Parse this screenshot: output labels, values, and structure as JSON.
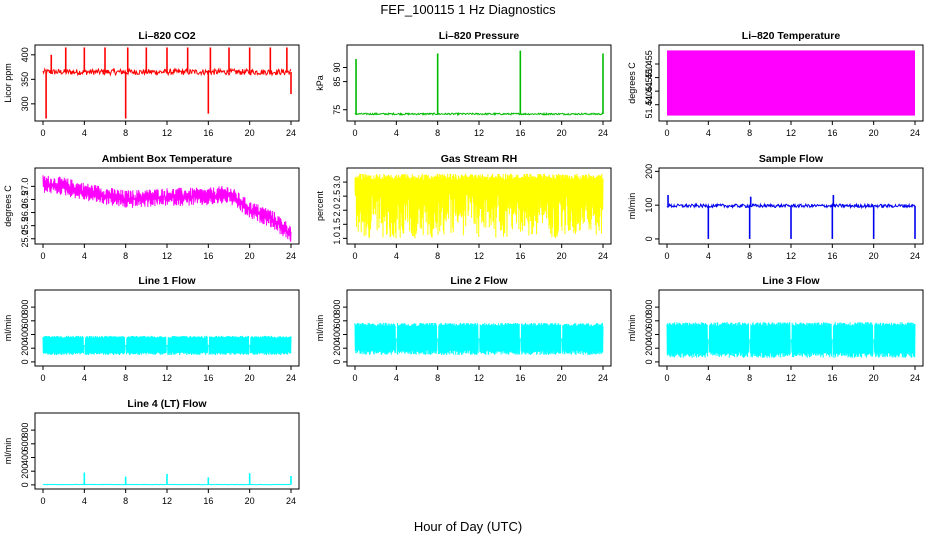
{
  "figure": {
    "title": "FEF_100115  1 Hz Diagnostics",
    "xlabel": "Hour of Day (UTC)"
  },
  "chart_data": [
    {
      "type": "line",
      "title": "Li–820 CO2",
      "ylabel": "Licor ppm",
      "color": "#ff0000",
      "xlim": [
        0,
        24
      ],
      "ylim": [
        265,
        420
      ],
      "xticks": [
        "0",
        "4",
        "8",
        "12",
        "16",
        "20",
        "24"
      ],
      "yticks": [
        {
          "value": 300,
          "label": "300"
        },
        {
          "value": 350,
          "label": "350"
        },
        {
          "value": 400,
          "label": "400"
        }
      ],
      "baseline": 365,
      "noise": 6,
      "spikes": [
        {
          "x": 0.3,
          "y": 270
        },
        {
          "x": 0.8,
          "y": 400
        },
        {
          "x": 2.2,
          "y": 415
        },
        {
          "x": 4.0,
          "y": 415
        },
        {
          "x": 6.0,
          "y": 415
        },
        {
          "x": 8.0,
          "y": 270
        },
        {
          "x": 8.2,
          "y": 415
        },
        {
          "x": 10.0,
          "y": 415
        },
        {
          "x": 12.0,
          "y": 415
        },
        {
          "x": 14.0,
          "y": 415
        },
        {
          "x": 16.0,
          "y": 280
        },
        {
          "x": 16.2,
          "y": 415
        },
        {
          "x": 18.0,
          "y": 415
        },
        {
          "x": 20.0,
          "y": 415
        },
        {
          "x": 22.0,
          "y": 415
        },
        {
          "x": 23.6,
          "y": 415
        },
        {
          "x": 24.0,
          "y": 320
        }
      ]
    },
    {
      "type": "line",
      "title": "Li–820 Pressure",
      "ylabel": "kPa",
      "color": "#00bb00",
      "xlim": [
        0,
        24
      ],
      "ylim": [
        71,
        98
      ],
      "xticks": [
        "0",
        "4",
        "8",
        "12",
        "16",
        "20",
        "24"
      ],
      "yticks": [
        {
          "value": 75,
          "label": "75"
        },
        {
          "value": 85,
          "label": "85"
        },
        {
          "value": 90,
          "label": "90"
        }
      ],
      "baseline": 73.5,
      "noise": 0.3,
      "spikes": [
        {
          "x": 0.1,
          "y": 93
        },
        {
          "x": 8.0,
          "y": 95
        },
        {
          "x": 16.0,
          "y": 96
        },
        {
          "x": 24.0,
          "y": 95
        }
      ]
    },
    {
      "type": "area",
      "title": "Li–820 Temperature",
      "ylabel": "degrees C",
      "color": "#ff00ff",
      "xlim": [
        0,
        24
      ],
      "ylim": [
        51.434,
        51.462
      ],
      "xticks": [
        "0",
        "4",
        "8",
        "12",
        "16",
        "20",
        "24"
      ],
      "yticks": [
        {
          "value": 51.44,
          "label": "51.440"
        },
        {
          "value": 51.445,
          "label": "51.445"
        },
        {
          "value": 51.45,
          "label": "51.450"
        },
        {
          "value": 51.455,
          "label": "51.455"
        }
      ],
      "band": [
        51.436,
        51.46
      ]
    },
    {
      "type": "line",
      "title": "Ambient Box Temperature",
      "ylabel": "degrees C",
      "color": "#ff00ff",
      "xlim": [
        0,
        24
      ],
      "ylim": [
        24.8,
        27.7
      ],
      "xticks": [
        "0",
        "4",
        "8",
        "12",
        "16",
        "20",
        "24"
      ],
      "yticks": [
        {
          "value": 25.0,
          "label": "25.0"
        },
        {
          "value": 25.5,
          "label": "25.5"
        },
        {
          "value": 26.0,
          "label": "26.0"
        },
        {
          "value": 26.5,
          "label": "26.5"
        },
        {
          "value": 27.0,
          "label": "27.0"
        }
      ],
      "trend": [
        {
          "x": 0,
          "y": 27.1
        },
        {
          "x": 2,
          "y": 27.0
        },
        {
          "x": 4,
          "y": 26.8
        },
        {
          "x": 8,
          "y": 26.5
        },
        {
          "x": 12,
          "y": 26.6
        },
        {
          "x": 16,
          "y": 26.6
        },
        {
          "x": 18,
          "y": 26.7
        },
        {
          "x": 20,
          "y": 26.1
        },
        {
          "x": 22,
          "y": 25.8
        },
        {
          "x": 24,
          "y": 25.2
        }
      ],
      "noise": 0.35
    },
    {
      "type": "line",
      "title": "Gas Stream RH",
      "ylabel": "percent",
      "color": "#ffff00",
      "xlim": [
        0,
        24
      ],
      "ylim": [
        0.8,
        3.5
      ],
      "xticks": [
        "0",
        "4",
        "8",
        "12",
        "16",
        "20",
        "24"
      ],
      "yticks": [
        {
          "value": 1.0,
          "label": "1.0"
        },
        {
          "value": 1.5,
          "label": "1.5"
        },
        {
          "value": 2.0,
          "label": "2.0"
        },
        {
          "value": 2.5,
          "label": "2.5"
        },
        {
          "value": 3.0,
          "label": "3.0"
        }
      ],
      "band": [
        1.0,
        3.3
      ]
    },
    {
      "type": "line",
      "title": "Sample Flow",
      "ylabel": "ml/min",
      "color": "#0000ee",
      "xlim": [
        0,
        24
      ],
      "ylim": [
        -15,
        210
      ],
      "xticks": [
        "0",
        "4",
        "8",
        "12",
        "16",
        "20",
        "24"
      ],
      "yticks": [
        {
          "value": 0,
          "label": "0"
        },
        {
          "value": 100,
          "label": "100"
        },
        {
          "value": 200,
          "label": "200"
        }
      ],
      "baseline": 98,
      "noise": 5,
      "spikes": [
        {
          "x": 0.1,
          "y": 130
        },
        {
          "x": 4.0,
          "y": 0
        },
        {
          "x": 8.0,
          "y": 0
        },
        {
          "x": 8.1,
          "y": 125
        },
        {
          "x": 12.0,
          "y": 0
        },
        {
          "x": 16.0,
          "y": 0
        },
        {
          "x": 16.1,
          "y": 130
        },
        {
          "x": 20.0,
          "y": 0
        },
        {
          "x": 24.0,
          "y": 0
        }
      ]
    },
    {
      "type": "line",
      "title": "Line 1 Flow",
      "ylabel": "ml/min",
      "color": "#00ffff",
      "xlim": [
        0,
        24
      ],
      "ylim": [
        -60,
        1050
      ],
      "xticks": [
        "0",
        "4",
        "8",
        "12",
        "16",
        "20",
        "24"
      ],
      "yticks": [
        {
          "value": 0,
          "label": "0"
        },
        {
          "value": 200,
          "label": "200"
        },
        {
          "value": 400,
          "label": "400"
        },
        {
          "value": 600,
          "label": "600"
        },
        {
          "value": 800,
          "label": "800"
        }
      ],
      "band": [
        100,
        380
      ],
      "gaps": [
        4,
        8,
        12,
        16,
        20
      ]
    },
    {
      "type": "line",
      "title": "Line 2 Flow",
      "ylabel": "ml/min",
      "color": "#00ffff",
      "xlim": [
        0,
        24
      ],
      "ylim": [
        -60,
        1050
      ],
      "xticks": [
        "0",
        "4",
        "8",
        "12",
        "16",
        "20",
        "24"
      ],
      "yticks": [
        {
          "value": 0,
          "label": "0"
        },
        {
          "value": 200,
          "label": "200"
        },
        {
          "value": 400,
          "label": "400"
        },
        {
          "value": 600,
          "label": "600"
        },
        {
          "value": 800,
          "label": "800"
        }
      ],
      "band": [
        100,
        570
      ],
      "gaps": [
        4,
        8,
        12,
        16,
        20
      ]
    },
    {
      "type": "line",
      "title": "Line 3 Flow",
      "ylabel": "ml/min",
      "color": "#00ffff",
      "xlim": [
        0,
        24
      ],
      "ylim": [
        -60,
        1050
      ],
      "xticks": [
        "0",
        "4",
        "8",
        "12",
        "16",
        "20",
        "24"
      ],
      "yticks": [
        {
          "value": 0,
          "label": "0"
        },
        {
          "value": 200,
          "label": "200"
        },
        {
          "value": 400,
          "label": "400"
        },
        {
          "value": 600,
          "label": "600"
        },
        {
          "value": 800,
          "label": "800"
        }
      ],
      "band": [
        60,
        580
      ],
      "gaps": [
        4,
        8,
        12,
        16,
        20
      ]
    },
    {
      "type": "line",
      "title": "Line 4 (LT) Flow",
      "ylabel": "ml/min",
      "color": "#00ffff",
      "xlim": [
        0,
        24
      ],
      "ylim": [
        -60,
        1050
      ],
      "xticks": [
        "0",
        "4",
        "8",
        "12",
        "16",
        "20",
        "24"
      ],
      "yticks": [
        {
          "value": 0,
          "label": "0"
        },
        {
          "value": 200,
          "label": "200"
        },
        {
          "value": 400,
          "label": "400"
        },
        {
          "value": 600,
          "label": "600"
        },
        {
          "value": 800,
          "label": "800"
        }
      ],
      "baseline": 5,
      "noise": 3,
      "spikes": [
        {
          "x": 4.0,
          "y": 180
        },
        {
          "x": 8.0,
          "y": 120
        },
        {
          "x": 12.0,
          "y": 160
        },
        {
          "x": 16.0,
          "y": 110
        },
        {
          "x": 20.0,
          "y": 170
        },
        {
          "x": 24.0,
          "y": 130
        }
      ]
    }
  ]
}
